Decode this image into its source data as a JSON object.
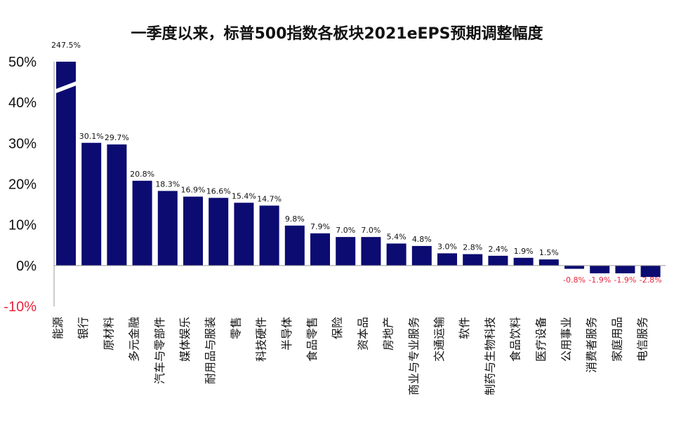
{
  "chart_data": {
    "type": "bar",
    "title": "一季度以来，标普500指数各板块2021eEPS预期调整幅度",
    "ylim": [
      -10,
      50
    ],
    "yticks": [
      {
        "value": 50,
        "label": "50%"
      },
      {
        "value": 40,
        "label": "40%"
      },
      {
        "value": 30,
        "label": "30%"
      },
      {
        "value": 20,
        "label": "20%"
      },
      {
        "value": 10,
        "label": "10%"
      },
      {
        "value": 0,
        "label": "0%"
      },
      {
        "value": -10,
        "label": "-10%"
      }
    ],
    "axis_break": "能源",
    "categories": [
      "能源",
      "银行",
      "原材料",
      "多元金融",
      "汽车与零部件",
      "媒体娱乐",
      "耐用品与服装",
      "零售",
      "科技硬件",
      "半导体",
      "食品零售",
      "保险",
      "资本品",
      "房地产",
      "商业与专业服务",
      "交通运输",
      "软件",
      "制药与生物科技",
      "食品饮料",
      "医疗设备",
      "公用事业",
      "消费者服务",
      "家庭用品",
      "电信服务"
    ],
    "values": [
      247.5,
      30.1,
      29.7,
      20.8,
      18.3,
      16.9,
      16.6,
      15.4,
      14.7,
      9.8,
      7.9,
      7.0,
      7.0,
      5.4,
      4.8,
      3.0,
      2.8,
      2.4,
      1.9,
      1.5,
      -0.8,
      -1.9,
      -1.9,
      -2.8
    ],
    "data_labels": [
      "247.5%",
      "30.1%",
      "29.7%",
      "20.8%",
      "18.3%",
      "16.9%",
      "16.6%",
      "15.4%",
      "14.7%",
      "9.8%",
      "7.9%",
      "7.0%",
      "7.0%",
      "5.4%",
      "4.8%",
      "3.0%",
      "2.8%",
      "2.4%",
      "1.9%",
      "1.5%",
      "-0.8%",
      "-1.9%",
      "-1.9%",
      "-2.8%"
    ],
    "colors": {
      "bar": "#0b0b72",
      "positive_text": "#111111",
      "negative_text": "#e8243c",
      "axis": "#999999"
    }
  }
}
